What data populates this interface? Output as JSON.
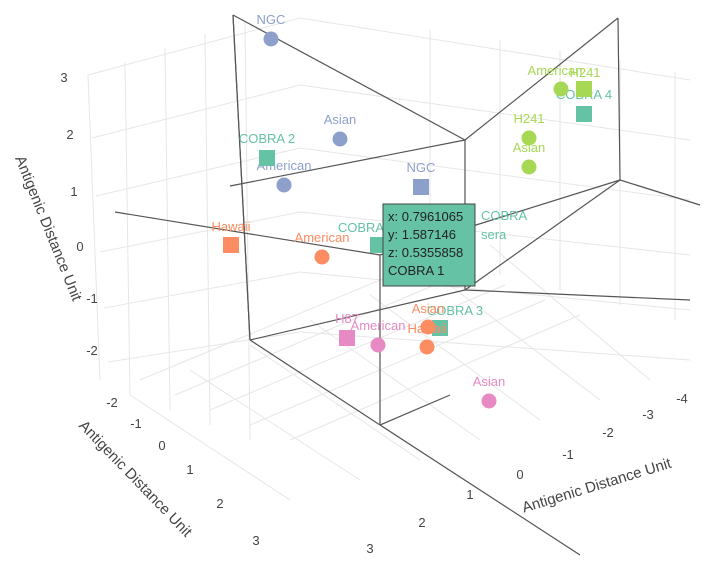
{
  "chart_data": {
    "type": "scatter3d",
    "axes": {
      "x_title": "Antigenic Distance Unit",
      "y_title": "Antigenic Distance Unit",
      "z_title": "Antigenic Distance Unit",
      "x_ticks": [
        "-4",
        "-3",
        "-2",
        "-1",
        "0",
        "1",
        "2",
        "3"
      ],
      "y_ticks": [
        "-2",
        "-1",
        "0",
        "1",
        "2",
        "3"
      ],
      "z_ticks": [
        "-2",
        "-1",
        "0",
        "1",
        "2",
        "3"
      ]
    },
    "colors": {
      "blue": "#8da0cb",
      "green": "#66c2a5",
      "orange": "#fc8d62",
      "pink": "#e78ac3",
      "lime": "#a6d854"
    },
    "points": [
      {
        "label": "NGC",
        "color": "blue",
        "marker": "circle"
      },
      {
        "label": "Asian",
        "color": "blue",
        "marker": "circle"
      },
      {
        "label": "American",
        "color": "blue",
        "marker": "circle"
      },
      {
        "label": "NGC",
        "color": "blue",
        "marker": "square"
      },
      {
        "label": "COBRA 2",
        "color": "green",
        "marker": "square"
      },
      {
        "label": "COBRA 4",
        "color": "green",
        "marker": "square"
      },
      {
        "label": "COBRA 1",
        "color": "green",
        "marker": "square"
      },
      {
        "label": "COBRA 3",
        "color": "green",
        "marker": "square"
      },
      {
        "label": "American",
        "color": "lime",
        "marker": "circle"
      },
      {
        "label": "H241",
        "color": "lime",
        "marker": "square"
      },
      {
        "label": "H241",
        "color": "lime",
        "marker": "circle"
      },
      {
        "label": "Asian",
        "color": "lime",
        "marker": "circle"
      },
      {
        "label": "Hawaii",
        "color": "orange",
        "marker": "square"
      },
      {
        "label": "American",
        "color": "orange",
        "marker": "circle"
      },
      {
        "label": "Asian",
        "color": "orange",
        "marker": "circle"
      },
      {
        "label": "Hawaii",
        "color": "orange",
        "marker": "circle"
      },
      {
        "label": "H87",
        "color": "pink",
        "marker": "square"
      },
      {
        "label": "American",
        "color": "pink",
        "marker": "circle"
      },
      {
        "label": "Asian",
        "color": "pink",
        "marker": "circle"
      }
    ],
    "tooltip": {
      "lines": [
        "x: 0.7961065",
        "y: 1.587146",
        "z: 0.5355858",
        "COBRA 1"
      ],
      "side_label": [
        "COBRA",
        "sera"
      ],
      "color": "green"
    }
  }
}
